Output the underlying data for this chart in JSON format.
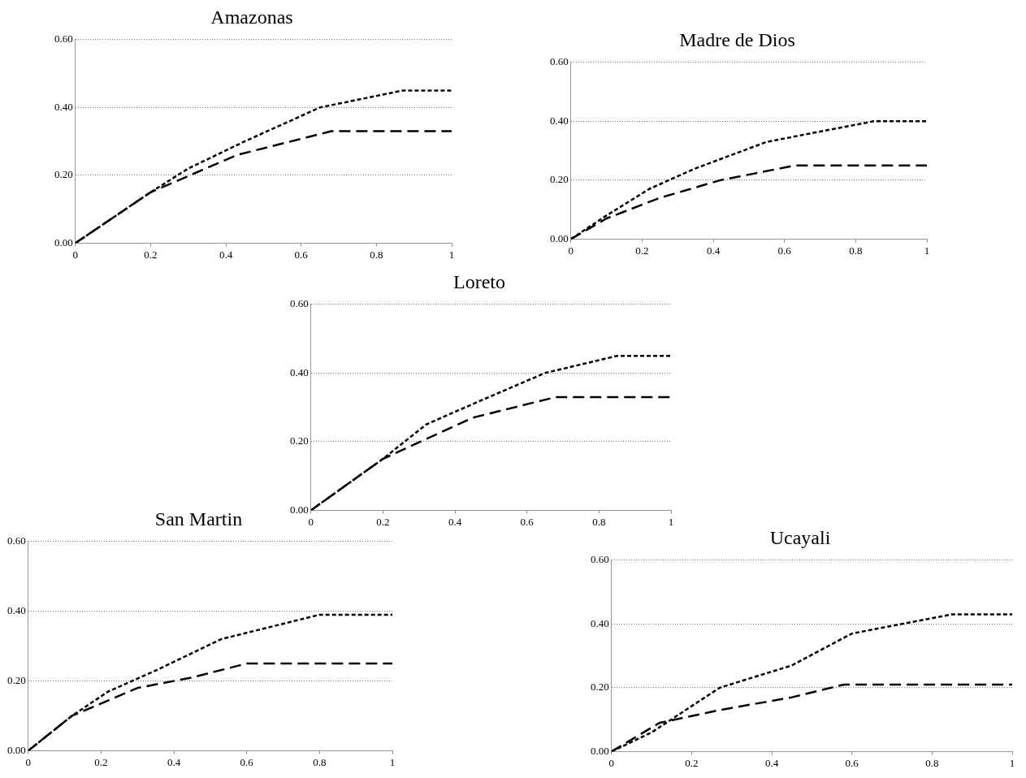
{
  "chart_data": [
    {
      "type": "line",
      "title": "Amazonas",
      "xlim": [
        0,
        1
      ],
      "ylim": [
        0,
        0.6
      ],
      "xticks": [
        0,
        0.2,
        0.4,
        0.6,
        0.8,
        1
      ],
      "yticks": [
        {
          "value": 0,
          "label": "0.00"
        },
        {
          "value": 0.2,
          "label": "0.20"
        },
        {
          "value": 0.4,
          "label": "0.40"
        },
        {
          "value": 0.6,
          "label": "0.60"
        }
      ],
      "grid": "y",
      "legend": false,
      "marker": "none",
      "series": [
        {
          "color": "#000000",
          "line_style": "dotted",
          "x": [
            0,
            0.2,
            0.3,
            0.45,
            0.65,
            0.87,
            1
          ],
          "values": [
            0,
            0.15,
            0.22,
            0.3,
            0.4,
            0.45,
            0.45
          ]
        },
        {
          "color": "#000000",
          "line_style": "dashed",
          "x": [
            0,
            0.2,
            0.43,
            0.68,
            1
          ],
          "values": [
            0,
            0.15,
            0.26,
            0.33,
            0.33
          ]
        }
      ]
    },
    {
      "type": "line",
      "title": "Madre de Dios",
      "xlim": [
        0,
        1
      ],
      "ylim": [
        0,
        0.6
      ],
      "xticks": [
        0,
        0.2,
        0.4,
        0.6,
        0.8,
        1
      ],
      "yticks": [
        {
          "value": 0,
          "label": "0.00"
        },
        {
          "value": 0.2,
          "label": "0.20"
        },
        {
          "value": 0.4,
          "label": "0.40"
        },
        {
          "value": 0.6,
          "label": "0.60"
        }
      ],
      "grid": "y",
      "legend": false,
      "marker": "none",
      "series": [
        {
          "color": "#000000",
          "line_style": "dotted",
          "x": [
            0,
            0.1,
            0.22,
            0.35,
            0.55,
            0.85,
            1
          ],
          "values": [
            0,
            0.08,
            0.17,
            0.24,
            0.33,
            0.4,
            0.4
          ]
        },
        {
          "color": "#000000",
          "line_style": "dashed",
          "x": [
            0,
            0.1,
            0.25,
            0.42,
            0.63,
            1
          ],
          "values": [
            0,
            0.07,
            0.14,
            0.2,
            0.25,
            0.25
          ]
        }
      ]
    },
    {
      "type": "line",
      "title": "Loreto",
      "xlim": [
        0,
        1
      ],
      "ylim": [
        0,
        0.6
      ],
      "xticks": [
        0,
        0.2,
        0.4,
        0.6,
        0.8,
        1
      ],
      "yticks": [
        {
          "value": 0,
          "label": "0.00"
        },
        {
          "value": 0.2,
          "label": "0.20"
        },
        {
          "value": 0.4,
          "label": "0.40"
        },
        {
          "value": 0.6,
          "label": "0.60"
        }
      ],
      "grid": "y",
      "legend": false,
      "marker": "none",
      "series": [
        {
          "color": "#000000",
          "line_style": "dotted",
          "x": [
            0,
            0.2,
            0.32,
            0.45,
            0.65,
            0.85,
            1
          ],
          "values": [
            0,
            0.15,
            0.25,
            0.31,
            0.4,
            0.45,
            0.45
          ]
        },
        {
          "color": "#000000",
          "line_style": "dashed",
          "x": [
            0,
            0.2,
            0.45,
            0.68,
            1
          ],
          "values": [
            0,
            0.15,
            0.27,
            0.33,
            0.33
          ]
        }
      ]
    },
    {
      "type": "line",
      "title": "San Martin",
      "xlim": [
        0,
        1
      ],
      "ylim": [
        0,
        0.6
      ],
      "xticks": [
        0,
        0.2,
        0.4,
        0.6,
        0.8,
        1
      ],
      "yticks": [
        {
          "value": 0,
          "label": "0.00"
        },
        {
          "value": 0.2,
          "label": "0.20"
        },
        {
          "value": 0.4,
          "label": "0.40"
        },
        {
          "value": 0.6,
          "label": "0.60"
        }
      ],
      "grid": "y",
      "legend": false,
      "marker": "none",
      "series": [
        {
          "color": "#000000",
          "line_style": "dotted",
          "x": [
            0,
            0.12,
            0.22,
            0.35,
            0.53,
            0.8,
            1
          ],
          "values": [
            0,
            0.1,
            0.17,
            0.23,
            0.32,
            0.39,
            0.39
          ]
        },
        {
          "color": "#000000",
          "line_style": "dashed",
          "x": [
            0,
            0.12,
            0.3,
            0.45,
            0.6,
            1
          ],
          "values": [
            0,
            0.1,
            0.18,
            0.21,
            0.25,
            0.25
          ]
        }
      ]
    },
    {
      "type": "line",
      "title": "Ucayali",
      "xlim": [
        0,
        1
      ],
      "ylim": [
        0,
        0.6
      ],
      "xticks": [
        0,
        0.2,
        0.4,
        0.6,
        0.8,
        1
      ],
      "yticks": [
        {
          "value": 0,
          "label": "0.00"
        },
        {
          "value": 0.2,
          "label": "0.20"
        },
        {
          "value": 0.4,
          "label": "0.40"
        },
        {
          "value": 0.6,
          "label": "0.60"
        }
      ],
      "grid": "y",
      "legend": false,
      "marker": "none",
      "series": [
        {
          "color": "#000000",
          "line_style": "dotted",
          "x": [
            0,
            0.1,
            0.27,
            0.45,
            0.6,
            0.85,
            1
          ],
          "values": [
            0,
            0.06,
            0.2,
            0.27,
            0.37,
            0.43,
            0.43
          ]
        },
        {
          "color": "#000000",
          "line_style": "dashed",
          "x": [
            0,
            0.12,
            0.27,
            0.45,
            0.58,
            1
          ],
          "values": [
            0,
            0.09,
            0.13,
            0.17,
            0.21,
            0.21
          ]
        }
      ]
    }
  ]
}
